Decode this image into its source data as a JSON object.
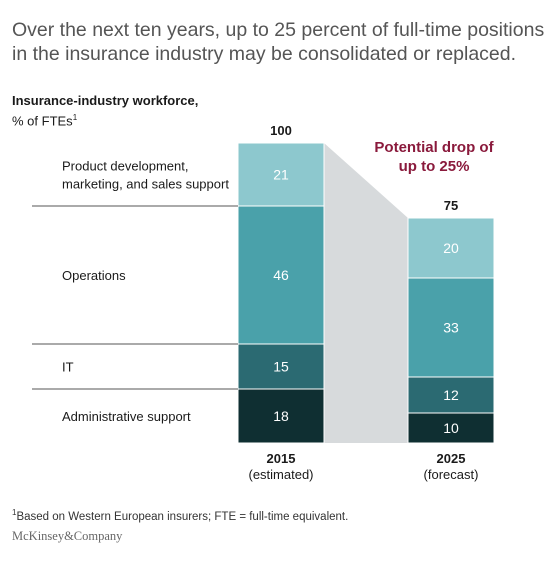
{
  "headline": "Over the next ten years, up to 25 percent of full-time positions in the insurance industry may be consolidated or replaced.",
  "chart_data": {
    "type": "bar",
    "stacked": true,
    "title": "Insurance-industry workforce,",
    "subtitle": "% of FTEs",
    "subtitle_footnote_marker": "1",
    "categories": [
      {
        "year": "2015",
        "note": "(estimated)"
      },
      {
        "year": "2025",
        "note": "(forecast)"
      }
    ],
    "totals": [
      100,
      75
    ],
    "series": [
      {
        "name": "Administrative support",
        "values": [
          18,
          10
        ],
        "color": "#0f2f32"
      },
      {
        "name": "IT",
        "values": [
          15,
          12
        ],
        "color": "#2b6a72"
      },
      {
        "name": "Operations",
        "values": [
          46,
          33
        ],
        "color": "#4aa1aa"
      },
      {
        "name": "Product development, marketing, and sales support",
        "label_lines": [
          "Product development,",
          "marketing, and sales support"
        ],
        "values": [
          21,
          20
        ],
        "color": "#8dc8ce"
      }
    ],
    "annotation": {
      "lines": [
        "Potential drop of",
        "up to 25%"
      ],
      "color": "#8a1a3c"
    },
    "connector_color": "#d7dadc"
  },
  "footnote": {
    "marker": "1",
    "text": "Based on Western European insurers; FTE = full-time equivalent."
  },
  "brand": "McKinsey&Company"
}
